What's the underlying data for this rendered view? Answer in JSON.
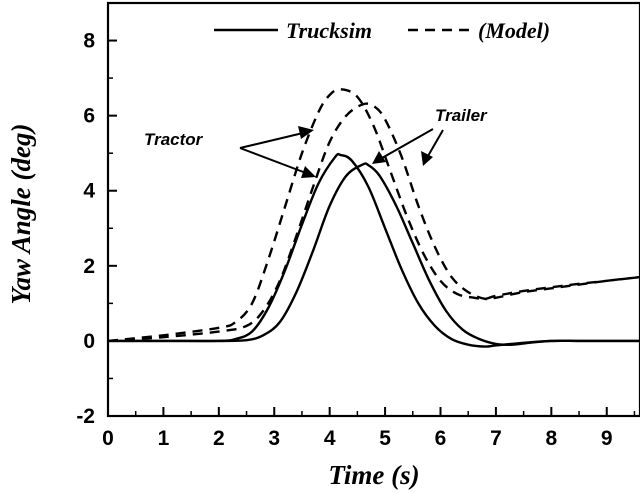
{
  "chart_data": {
    "type": "line",
    "title": "",
    "xlabel": "Time (s)",
    "ylabel": "Yaw Angle (deg)",
    "xlim": [
      0,
      9.6
    ],
    "ylim": [
      -2,
      9.0
    ],
    "xticks": [
      0,
      1,
      2,
      3,
      4,
      5,
      6,
      7,
      8,
      9
    ],
    "yticks": [
      -2,
      0,
      2,
      4,
      6,
      8
    ],
    "xtick_labels": [
      "0",
      "1",
      "2",
      "3",
      "4",
      "5",
      "6",
      "7",
      "8",
      "9"
    ],
    "ytick_labels": [
      "-2",
      "0",
      "2",
      "4",
      "6",
      "8"
    ],
    "grid": false,
    "legend": {
      "placement": "top",
      "entries": [
        {
          "label": "Trucksim",
          "style": "solid"
        },
        {
          "label": "(Model)",
          "style": "dashed"
        }
      ]
    },
    "annotations": [
      {
        "text": "Tractor"
      },
      {
        "text": "Trailer"
      }
    ],
    "series": [
      {
        "style": "solid",
        "x": [
          0,
          1,
          2,
          2.3,
          2.6,
          2.9,
          3.2,
          3.5,
          3.8,
          4.1,
          4.2,
          4.4,
          4.7,
          5.0,
          5.3,
          5.6,
          5.9,
          6.2,
          6.5,
          6.8,
          7.0,
          7.5,
          8.0,
          8.5,
          9.0,
          9.6
        ],
        "y": [
          0,
          0,
          0,
          0.05,
          0.25,
          0.9,
          1.9,
          3.1,
          4.2,
          4.9,
          4.95,
          4.8,
          4.1,
          3.0,
          1.9,
          1.0,
          0.4,
          0.05,
          -0.1,
          -0.15,
          -0.12,
          -0.05,
          0,
          0,
          0,
          0
        ]
      },
      {
        "style": "solid",
        "x": [
          0,
          1,
          2,
          2.5,
          2.8,
          3.1,
          3.4,
          3.7,
          4.0,
          4.3,
          4.6,
          4.7,
          4.9,
          5.2,
          5.5,
          5.8,
          6.1,
          6.4,
          6.7,
          7.0,
          7.3,
          7.6,
          8.0,
          8.5,
          9.0,
          9.6
        ],
        "y": [
          0,
          0,
          0,
          0.02,
          0.15,
          0.5,
          1.3,
          2.4,
          3.6,
          4.4,
          4.7,
          4.68,
          4.4,
          3.6,
          2.6,
          1.6,
          0.8,
          0.3,
          0.05,
          -0.08,
          -0.1,
          -0.05,
          0,
          0,
          0,
          0
        ]
      },
      {
        "style": "dashed",
        "x": [
          0,
          1,
          2,
          2.3,
          2.6,
          2.9,
          3.2,
          3.5,
          3.8,
          4.0,
          4.2,
          4.5,
          4.8,
          5.1,
          5.4,
          5.7,
          6.0,
          6.3,
          6.6,
          6.8,
          7.0,
          7.5,
          8.0,
          8.5,
          9.0,
          9.6
        ],
        "y": [
          0,
          0.15,
          0.35,
          0.5,
          1.0,
          2.2,
          3.6,
          5.0,
          6.1,
          6.55,
          6.7,
          6.5,
          5.7,
          4.5,
          3.3,
          2.3,
          1.6,
          1.25,
          1.15,
          1.12,
          1.2,
          1.33,
          1.43,
          1.52,
          1.6,
          1.7
        ]
      },
      {
        "style": "dashed",
        "x": [
          0,
          1,
          2,
          2.5,
          2.8,
          3.1,
          3.4,
          3.7,
          4.0,
          4.3,
          4.6,
          4.8,
          5.0,
          5.3,
          5.6,
          5.9,
          6.2,
          6.5,
          6.8,
          7.0,
          7.5,
          8.0,
          8.5,
          9.0,
          9.6
        ],
        "y": [
          0,
          0.1,
          0.25,
          0.4,
          0.8,
          1.6,
          2.8,
          4.1,
          5.3,
          6.0,
          6.3,
          6.25,
          5.9,
          4.9,
          3.6,
          2.5,
          1.7,
          1.3,
          1.12,
          1.15,
          1.3,
          1.4,
          1.5,
          1.6,
          1.7
        ]
      }
    ]
  }
}
